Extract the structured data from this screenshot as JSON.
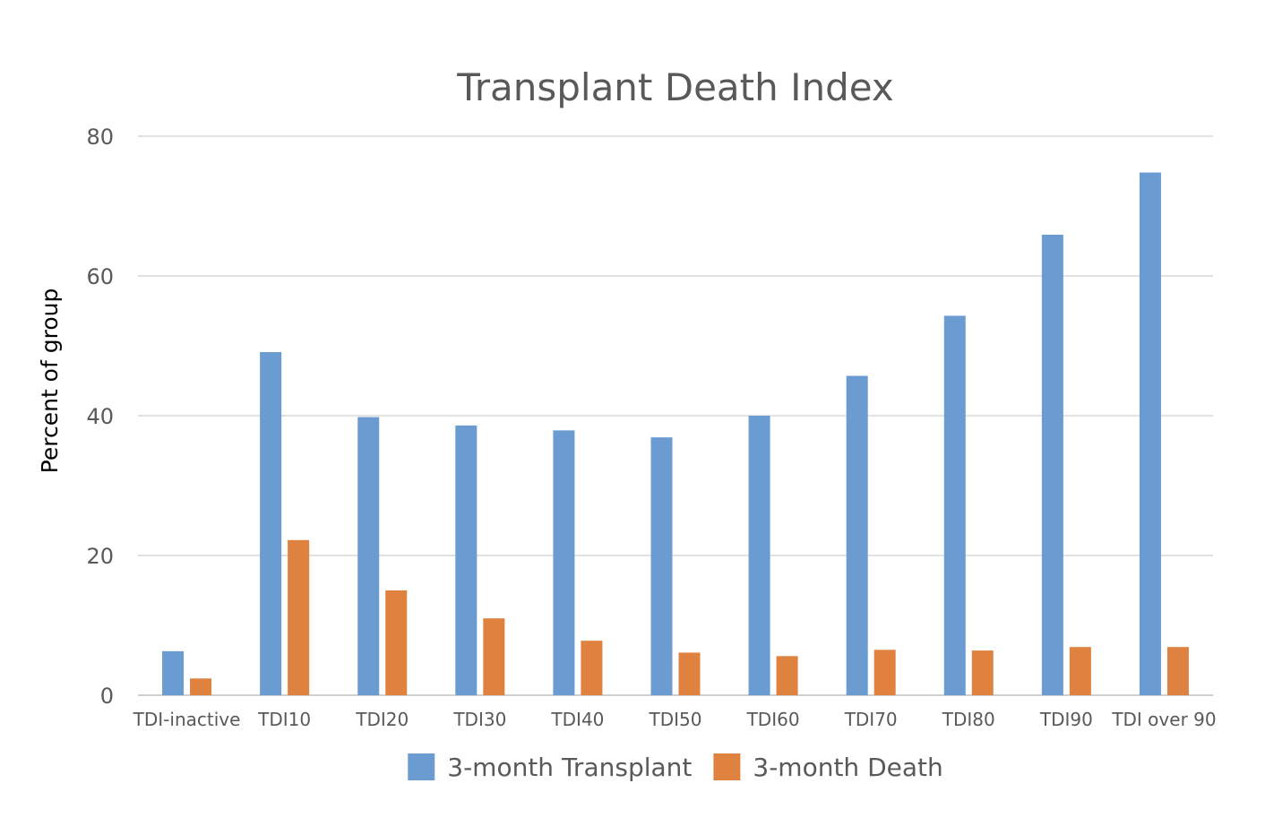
{
  "chart_data": {
    "type": "bar",
    "title": "Transplant Death Index",
    "xlabel": "",
    "ylabel": "Percent of group",
    "ylim": [
      0,
      80
    ],
    "yticks": [
      0,
      20,
      40,
      60,
      80
    ],
    "grid": true,
    "legend_position": "bottom",
    "categories": [
      "TDI-inactive",
      "TDI10",
      "TDI20",
      "TDI30",
      "TDI40",
      "TDI50",
      "TDI60",
      "TDI70",
      "TDI80",
      "TDI90",
      "TDI over 90"
    ],
    "series": [
      {
        "name": "3-month Transplant",
        "color": "#6a9bd1",
        "values": [
          6.3,
          49.1,
          39.8,
          38.6,
          37.9,
          36.9,
          40.0,
          45.7,
          54.3,
          65.9,
          74.8
        ]
      },
      {
        "name": "3-month Death",
        "color": "#e0823f",
        "values": [
          2.4,
          22.2,
          15.0,
          11.0,
          7.8,
          6.1,
          5.6,
          6.5,
          6.4,
          6.9,
          6.9
        ]
      }
    ]
  }
}
